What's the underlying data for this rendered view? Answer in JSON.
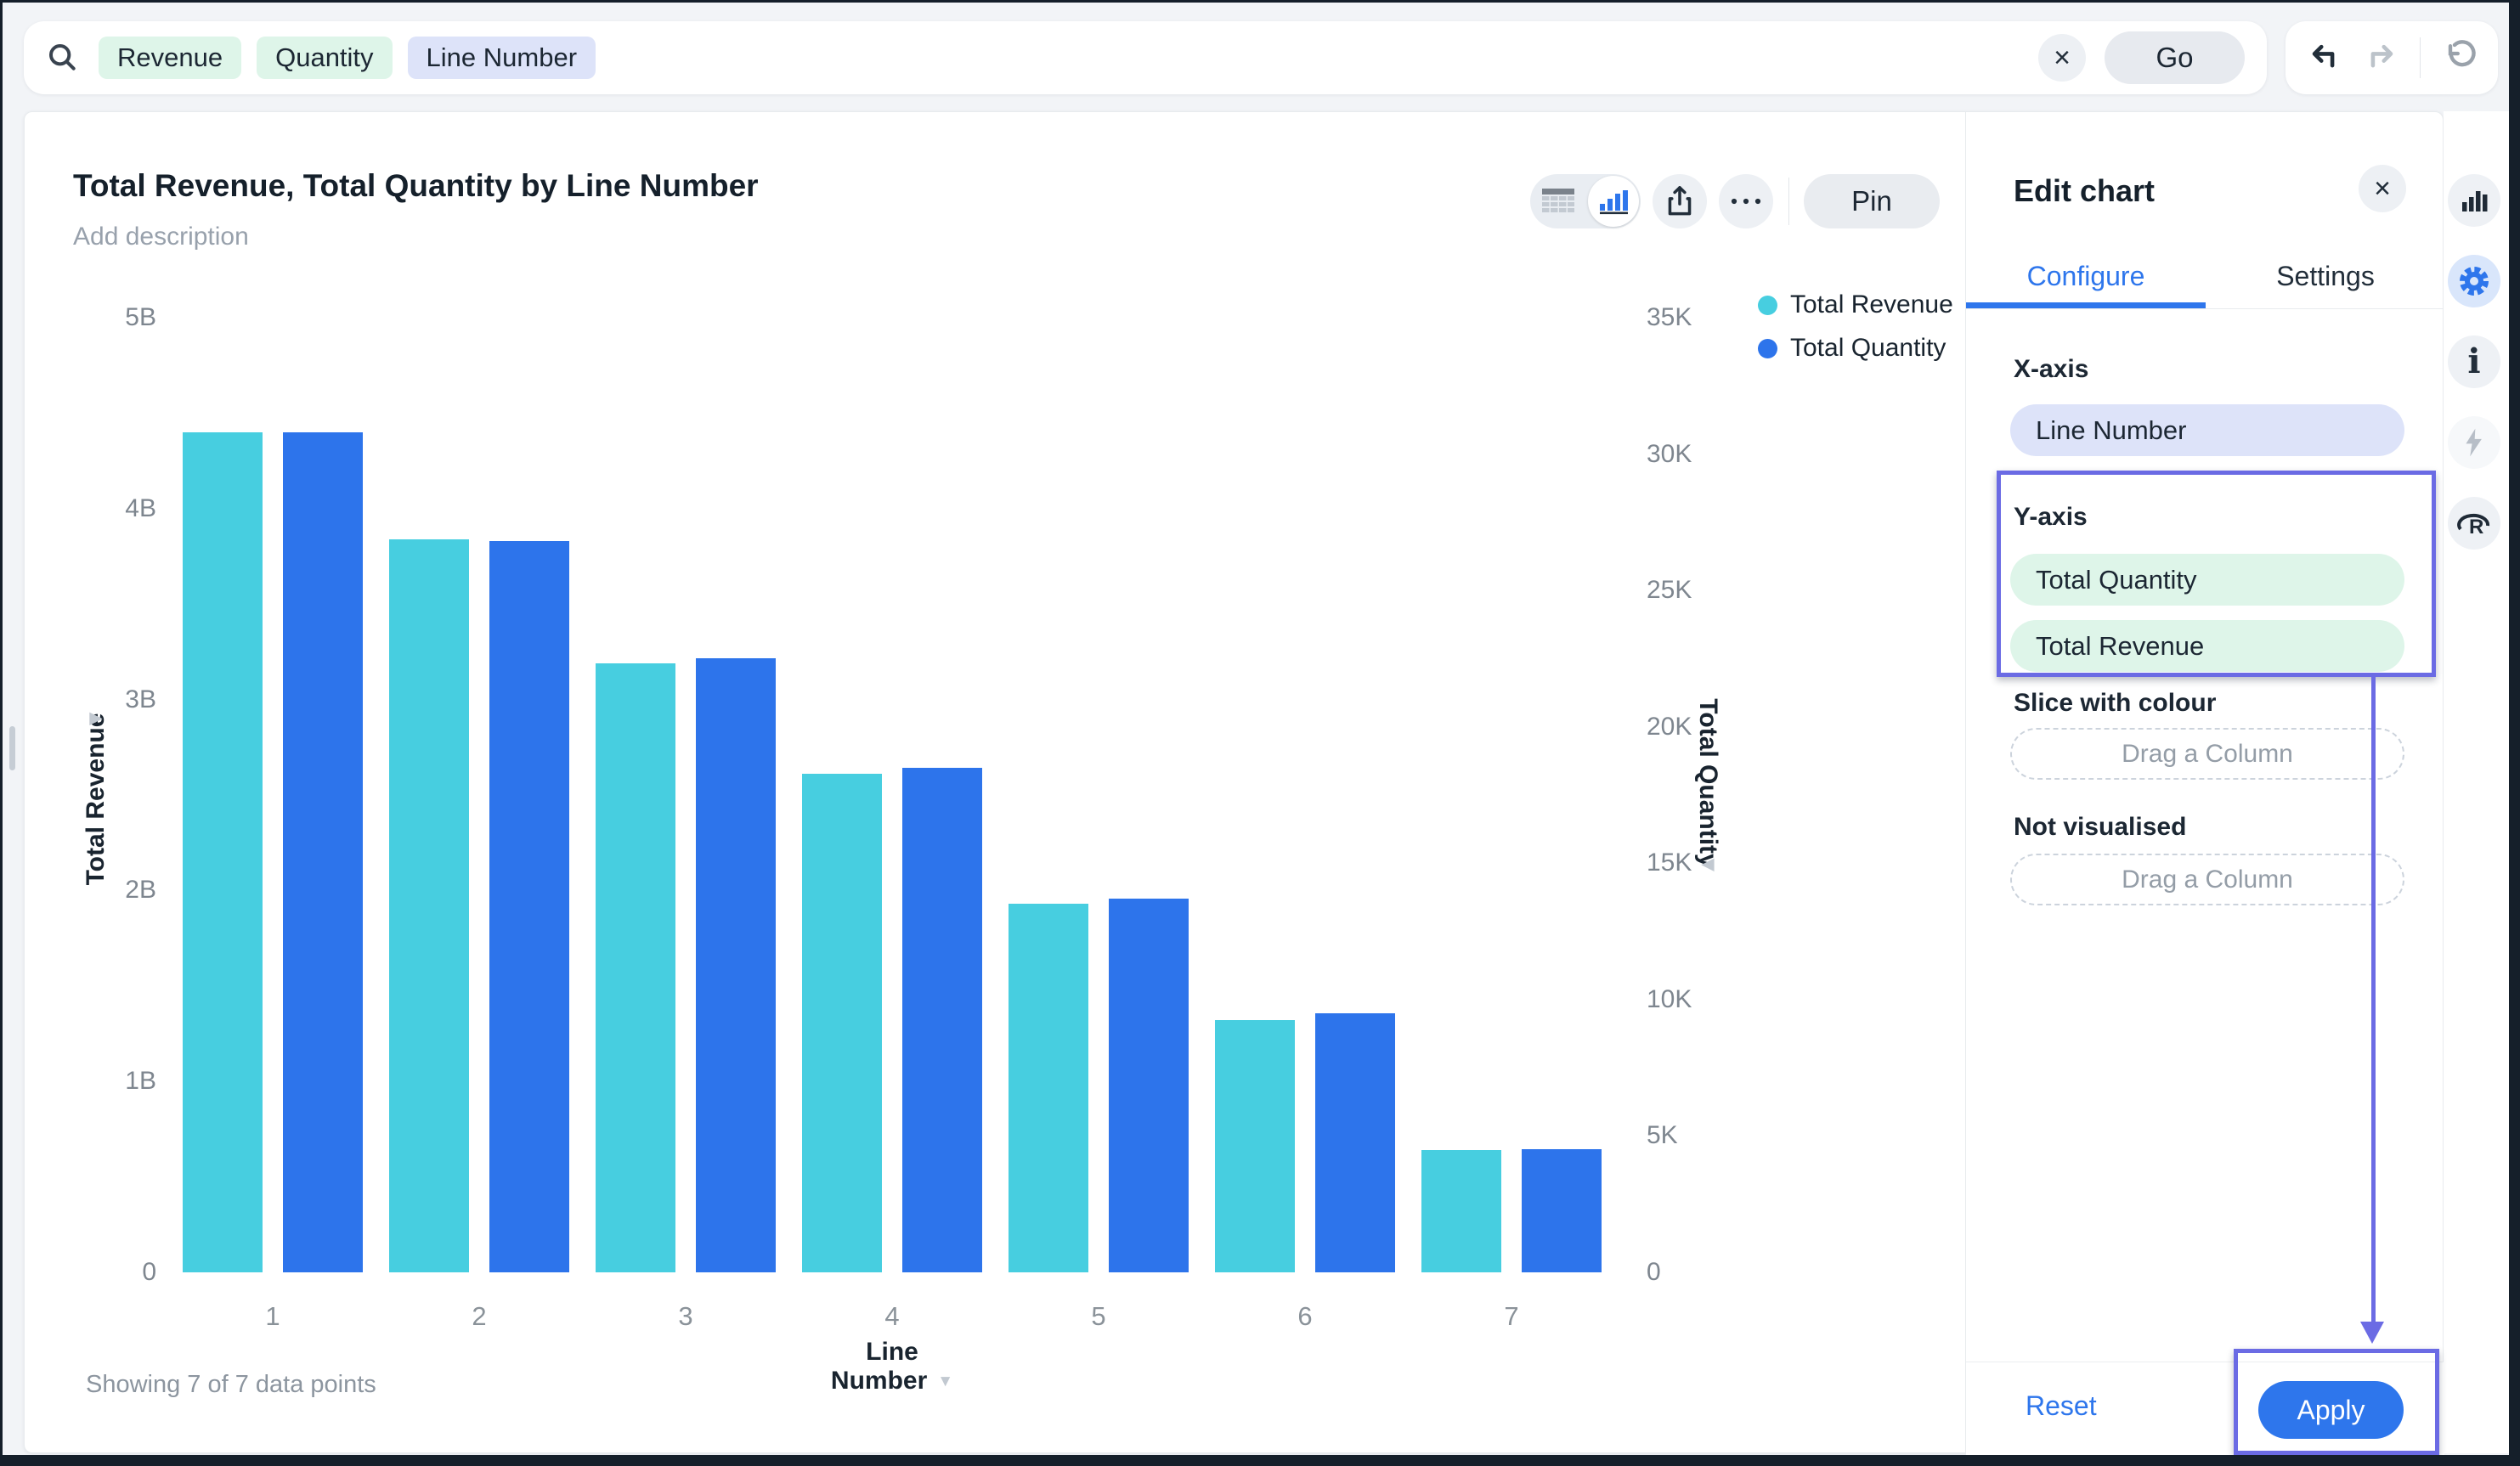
{
  "top_bar": {
    "search_pills": [
      {
        "label": "Revenue",
        "type": "measure"
      },
      {
        "label": "Quantity",
        "type": "measure"
      },
      {
        "label": "Line Number",
        "type": "dimension"
      }
    ],
    "clear_label": "×",
    "go_label": "Go"
  },
  "chart_card": {
    "title": "Total Revenue, Total Quantity by Line Number",
    "description_placeholder": "Add description",
    "toolbar": {
      "pin_label": "Pin"
    },
    "footer_note": "Showing 7 of 7 data points"
  },
  "chart_data": {
    "type": "bar",
    "title": "Total Revenue, Total Quantity by Line Number",
    "categories": [
      "1",
      "2",
      "3",
      "4",
      "5",
      "6",
      "7"
    ],
    "series": [
      {
        "name": "Total Revenue",
        "axis": "left",
        "unit": "B",
        "color": "#47cee0",
        "values": [
          4.4,
          3.84,
          3.19,
          2.61,
          1.93,
          1.32,
          0.64
        ]
      },
      {
        "name": "Total Quantity",
        "axis": "right",
        "unit": "K",
        "color": "#2d74eb",
        "values": [
          30.8,
          26.8,
          22.5,
          18.5,
          13.7,
          9.5,
          4.5
        ]
      }
    ],
    "xlabel": "Line Number",
    "left_axis": {
      "label": "Total Revenue",
      "max": 5,
      "unit": "B",
      "ticks": [
        "5B",
        "4B",
        "3B",
        "2B",
        "1B",
        "0"
      ]
    },
    "right_axis": {
      "label": "Total Quantity",
      "max": 35,
      "unit": "K",
      "ticks": [
        "35K",
        "30K",
        "25K",
        "20K",
        "15K",
        "10K",
        "5K",
        "0"
      ]
    },
    "grid": false,
    "legend_position": "top-right"
  },
  "legend": [
    {
      "label": "Total Revenue",
      "color": "#47cee0"
    },
    {
      "label": "Total Quantity",
      "color": "#2d74eb"
    }
  ],
  "edit_panel": {
    "title": "Edit chart",
    "close_label": "×",
    "tabs": [
      {
        "label": "Configure",
        "active": true
      },
      {
        "label": "Settings",
        "active": false
      }
    ],
    "sections": {
      "x_axis": {
        "label": "X-axis",
        "pills": [
          {
            "label": "Line Number",
            "type": "dimension"
          }
        ]
      },
      "y_axis": {
        "label": "Y-axis",
        "pills": [
          {
            "label": "Total Quantity",
            "type": "measure"
          },
          {
            "label": "Total Revenue",
            "type": "measure"
          }
        ]
      },
      "slice": {
        "label": "Slice with colour",
        "placeholder": "Drag a Column"
      },
      "not_visualised": {
        "label": "Not visualised",
        "placeholder": "Drag a Column"
      }
    },
    "footer": {
      "reset_label": "Reset",
      "apply_label": "Apply"
    }
  },
  "side_rail": {
    "icons": [
      {
        "name": "chart-icon",
        "active": false,
        "disabled": false
      },
      {
        "name": "gear-icon",
        "active": true,
        "disabled": false
      },
      {
        "name": "info-icon",
        "active": false,
        "disabled": false
      },
      {
        "name": "lightning-icon",
        "active": false,
        "disabled": true
      },
      {
        "name": "r-logo-icon",
        "active": false,
        "disabled": false
      }
    ]
  },
  "colors": {
    "accent_blue": "#2e76ec",
    "bar_cyan": "#47cee0",
    "bar_blue": "#2d74eb",
    "pill_green": "#def5e9",
    "pill_lavender": "#dde3f9",
    "annotation_purple": "#6b6be4",
    "frame_dark": "#151f2a"
  }
}
